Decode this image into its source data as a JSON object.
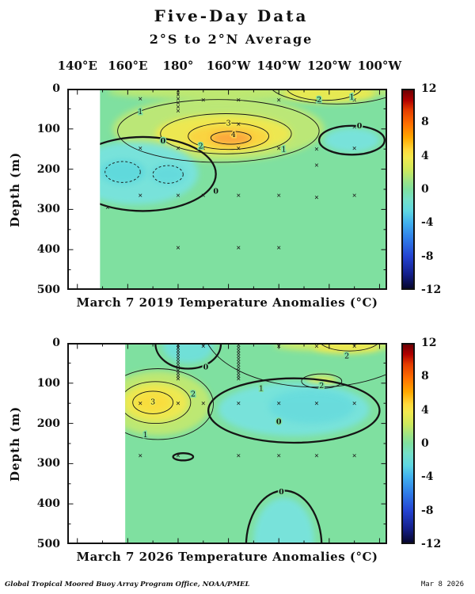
{
  "header": {
    "title": "Five-Day Data",
    "subtitle": "2°S to 2°N Average"
  },
  "footer": {
    "credit": "Global Tropical Moored Buoy Array Program Office, NOAA/PMEL",
    "date": "Mar 8 2026"
  },
  "chart_data": {
    "type": "heatmap",
    "subtype": "filled-contour-depth-longitude-section",
    "axes": {
      "lon_min": 136,
      "lon_max": 263,
      "x_ticks": [
        {
          "lon": 140,
          "label": "140°E"
        },
        {
          "lon": 160,
          "label": "160°E"
        },
        {
          "lon": 180,
          "label": "180°"
        },
        {
          "lon": 200,
          "label": "160°W"
        },
        {
          "lon": 220,
          "label": "140°W"
        },
        {
          "lon": 240,
          "label": "120°W"
        },
        {
          "lon": 260,
          "label": "100°W"
        }
      ],
      "ylabel": "Depth (m)",
      "depth_max": 500,
      "depth_ticks": [
        0,
        100,
        200,
        300,
        400,
        500
      ]
    },
    "colorbar": {
      "min": -12,
      "max": 12,
      "units": "°C",
      "ticks": [
        12,
        8,
        4,
        0,
        -4,
        -8,
        -12
      ],
      "stops": [
        {
          "pos": 0.0,
          "color": "#6e0004"
        },
        {
          "pos": 0.05,
          "color": "#b10000"
        },
        {
          "pos": 0.1,
          "color": "#e43c00"
        },
        {
          "pos": 0.17,
          "color": "#ff6f00"
        },
        {
          "pos": 0.24,
          "color": "#ffa800"
        },
        {
          "pos": 0.3,
          "color": "#ffd83a"
        },
        {
          "pos": 0.34,
          "color": "#f3e94e"
        },
        {
          "pos": 0.4,
          "color": "#cfe95c"
        },
        {
          "pos": 0.46,
          "color": "#9be388"
        },
        {
          "pos": 0.5,
          "color": "#7fe0a0"
        },
        {
          "pos": 0.55,
          "color": "#75e0c8"
        },
        {
          "pos": 0.61,
          "color": "#5fd7e2"
        },
        {
          "pos": 0.67,
          "color": "#41b0ef"
        },
        {
          "pos": 0.75,
          "color": "#2f7ce8"
        },
        {
          "pos": 0.84,
          "color": "#2443d2"
        },
        {
          "pos": 0.93,
          "color": "#141f8a"
        },
        {
          "pos": 1.0,
          "color": "#070730"
        }
      ]
    },
    "panels": [
      {
        "caption": "March 7 2019 Temperature Anomalies (°C)",
        "data_start_lon": 149,
        "base_color": "#7fe0a0",
        "contour_levels_labeled": [
          "0",
          "1",
          "2",
          "3",
          "4"
        ],
        "features_summary": [
          "warm anomaly core up to +4°C near 160°W at ~120 m",
          "cool anomaly (below 0) in west Pacific 150–300 m",
          "cool patch near 110°W at ~90–180 m",
          "weak warm (+1,+2) near-surface band 130°W–105°W"
        ],
        "blobs": [
          {
            "lon": 196,
            "depth": 100,
            "rx": 42,
            "ry": 80,
            "color": "#c6e970",
            "opacity": 0.85
          },
          {
            "lon": 210,
            "depth": 8,
            "rx": 58,
            "ry": 20,
            "color": "#cdea66",
            "opacity": 0.8
          },
          {
            "lon": 198,
            "depth": 112,
            "rx": 27,
            "ry": 48,
            "color": "#f0e84f",
            "opacity": 0.95
          },
          {
            "lon": 200,
            "depth": 120,
            "rx": 16,
            "ry": 30,
            "color": "#fbd33f",
            "opacity": 0.95
          },
          {
            "lon": 201,
            "depth": 123,
            "rx": 8,
            "ry": 15,
            "color": "#fca43c",
            "opacity": 0.95
          },
          {
            "lon": 240,
            "depth": 12,
            "rx": 18,
            "ry": 24,
            "color": "#ece94f",
            "opacity": 0.9
          },
          {
            "lon": 163,
            "depth": 210,
            "rx": 25,
            "ry": 78,
            "color": "#78e3de",
            "opacity": 0.95
          },
          {
            "lon": 158,
            "depth": 207,
            "rx": 9,
            "ry": 30,
            "color": "#5fd9dd",
            "opacity": 0.95
          },
          {
            "lon": 176,
            "depth": 213,
            "rx": 7,
            "ry": 25,
            "color": "#63dadd",
            "opacity": 0.9
          },
          {
            "lon": 249,
            "depth": 128,
            "rx": 11,
            "ry": 30,
            "color": "#78e3de",
            "opacity": 0.95
          }
        ],
        "contours": [
          {
            "level": "1",
            "lon": 196,
            "depth": 105,
            "rx": 40,
            "ry": 78
          },
          {
            "level": "2",
            "lon": 199,
            "depth": 112,
            "rx": 26,
            "ry": 50
          },
          {
            "level": "3",
            "lon": 200,
            "depth": 118,
            "rx": 16,
            "ry": 33
          },
          {
            "level": "4",
            "lon": 201,
            "depth": 122,
            "rx": 8,
            "ry": 16
          },
          {
            "level": "2",
            "lon": 238,
            "depth": -4,
            "rx": 15,
            "ry": 33
          },
          {
            "level": "1",
            "lon": 243,
            "depth": -14,
            "rx": 27,
            "ry": 52
          },
          {
            "level": "0",
            "lon": 166,
            "depth": 212,
            "rx": 29,
            "ry": 92,
            "thick": true
          },
          {
            "level": "0",
            "lon": 249,
            "depth": 128,
            "rx": 13,
            "ry": 36,
            "thick": true
          },
          {
            "level": "-1",
            "lon": 158,
            "depth": 207,
            "rx": 7,
            "ry": 26,
            "dashed": true
          },
          {
            "level": "-1",
            "lon": 176,
            "depth": 213,
            "rx": 6,
            "ry": 22,
            "dashed": true
          }
        ],
        "labels": [
          {
            "text": "1",
            "lon": 165,
            "depth": 57
          },
          {
            "text": "1",
            "lon": 222,
            "depth": 150
          },
          {
            "text": "2",
            "lon": 189,
            "depth": 142
          },
          {
            "text": "3",
            "lon": 200,
            "depth": 85,
            "halo": "#f2e84f"
          },
          {
            "text": "4",
            "lon": 202,
            "depth": 114,
            "halo": "#ffd24d"
          },
          {
            "text": "0",
            "lon": 174,
            "depth": 130,
            "bold": true
          },
          {
            "text": "0",
            "lon": 195,
            "depth": 255,
            "bold": true
          },
          {
            "text": "0",
            "lon": 252,
            "depth": 92,
            "bold": true
          },
          {
            "text": "2",
            "lon": 236,
            "depth": 27
          },
          {
            "text": "1",
            "lon": 249,
            "depth": 20
          }
        ],
        "markers": [
          {
            "lon": 152,
            "depths": [
              295
            ]
          },
          {
            "lon": 165,
            "depths": [
              25,
              148,
              265
            ]
          },
          {
            "lon": 180,
            "depths": [
              5,
              15,
              25,
              35,
              45,
              55,
              148,
              265,
              395
            ]
          },
          {
            "lon": 190,
            "depths": [
              28,
              148,
              265
            ]
          },
          {
            "lon": 204,
            "depths": [
              28,
              88,
              148,
              265,
              395
            ]
          },
          {
            "lon": 220,
            "depths": [
              28,
              148,
              265,
              395
            ]
          },
          {
            "lon": 235,
            "depths": [
              32,
              150,
              190,
              270
            ]
          },
          {
            "lon": 250,
            "depths": [
              28,
              95,
              148,
              265
            ]
          }
        ]
      },
      {
        "caption": "March 7 2026 Temperature Anomalies (°C)",
        "data_start_lon": 159,
        "base_color": "#7fe0a0",
        "contour_levels_labeled": [
          "0",
          "1",
          "2",
          "3"
        ],
        "features_summary": [
          "warm anomaly core up to +3°C near 170°E at ~150 m",
          "cool anomaly pool 160°W–110°W at ~100–250 m",
          "cool surface patch near the dateline",
          "cool anomaly below ~370 m near 140°W",
          "weak warm (+2) near-surface band 125°W–100°W"
        ],
        "blobs": [
          {
            "lon": 172,
            "depth": 150,
            "rx": 21,
            "ry": 80,
            "color": "#c8e96c",
            "opacity": 0.85
          },
          {
            "lon": 171,
            "depth": 148,
            "rx": 13,
            "ry": 48,
            "color": "#f0e84f",
            "opacity": 0.95
          },
          {
            "lon": 170,
            "depth": 148,
            "rx": 7,
            "ry": 24,
            "color": "#f9dd3c",
            "opacity": 0.95
          },
          {
            "lon": 243,
            "depth": 6,
            "rx": 25,
            "ry": 14,
            "color": "#d9ec60",
            "opacity": 0.9
          },
          {
            "lon": 247,
            "depth": 10,
            "rx": 13,
            "ry": 16,
            "color": "#f0e84f",
            "opacity": 0.9
          },
          {
            "lon": 237,
            "depth": 95,
            "rx": 6,
            "ry": 13,
            "color": "#e9ec58",
            "opacity": 0.9
          },
          {
            "lon": 184,
            "depth": 8,
            "rx": 10,
            "ry": 42,
            "color": "#6fe0dc",
            "opacity": 0.95
          },
          {
            "lon": 226,
            "depth": 165,
            "rx": 30,
            "ry": 66,
            "color": "#78e3de",
            "opacity": 0.95
          },
          {
            "lon": 233,
            "depth": 158,
            "rx": 17,
            "ry": 42,
            "color": "#67dbdd",
            "opacity": 0.9
          },
          {
            "lon": 222,
            "depth": 490,
            "rx": 12,
            "ry": 105,
            "color": "#78e3de",
            "opacity": 0.95
          }
        ],
        "contours": [
          {
            "level": "1",
            "lon": 172,
            "depth": 152,
            "rx": 22,
            "ry": 88
          },
          {
            "level": "2",
            "lon": 171,
            "depth": 148,
            "rx": 14,
            "ry": 52
          },
          {
            "level": "3",
            "lon": 170,
            "depth": 148,
            "rx": 8,
            "ry": 28
          },
          {
            "level": "1",
            "lon": 235,
            "depth": -40,
            "rx": 45,
            "ry": 150
          },
          {
            "level": "2",
            "lon": 248,
            "depth": -8,
            "rx": 12,
            "ry": 28
          },
          {
            "level": "2",
            "lon": 237,
            "depth": 95,
            "rx": 8,
            "ry": 18
          },
          {
            "level": "0",
            "lon": 184,
            "depth": 2,
            "rx": 13,
            "ry": 62,
            "thick": true
          },
          {
            "level": "0",
            "lon": 226,
            "depth": 168,
            "rx": 34,
            "ry": 80,
            "thick": true
          },
          {
            "level": "0",
            "lon": 182,
            "depth": 283,
            "rx": 4,
            "ry": 9,
            "thick": true
          },
          {
            "level": "0",
            "lon": 222,
            "depth": 505,
            "rx": 15,
            "ry": 138,
            "thick": true
          }
        ],
        "labels": [
          {
            "text": "3",
            "lon": 170,
            "depth": 146,
            "halo": "#f0e84f"
          },
          {
            "text": "2",
            "lon": 186,
            "depth": 127
          },
          {
            "text": "1",
            "lon": 167,
            "depth": 228
          },
          {
            "text": "1",
            "lon": 213,
            "depth": 113
          },
          {
            "text": "2",
            "lon": 237,
            "depth": 106
          },
          {
            "text": "2",
            "lon": 247,
            "depth": 32
          },
          {
            "text": "0",
            "lon": 191,
            "depth": 60,
            "bold": true
          },
          {
            "text": "0",
            "lon": 220,
            "depth": 195,
            "bold": true
          },
          {
            "text": "0",
            "lon": 221,
            "depth": 370,
            "bold": true
          }
        ],
        "markers": [
          {
            "lon": 165,
            "depths": [
              150,
              280
            ]
          },
          {
            "lon": 180,
            "depths": [
              5,
              12,
              19,
              26,
              33,
              40,
              47,
              54,
              61,
              68,
              75,
              82,
              89,
              150,
              280
            ]
          },
          {
            "lon": 190,
            "depths": [
              8,
              150
            ]
          },
          {
            "lon": 204,
            "depths": [
              5,
              12,
              19,
              26,
              33,
              40,
              47,
              54,
              61,
              68,
              75,
              82,
              89,
              150,
              280
            ]
          },
          {
            "lon": 220,
            "depths": [
              8,
              150,
              280
            ]
          },
          {
            "lon": 235,
            "depths": [
              8,
              150,
              280
            ]
          },
          {
            "lon": 250,
            "depths": [
              8,
              150,
              280
            ]
          }
        ]
      }
    ]
  }
}
